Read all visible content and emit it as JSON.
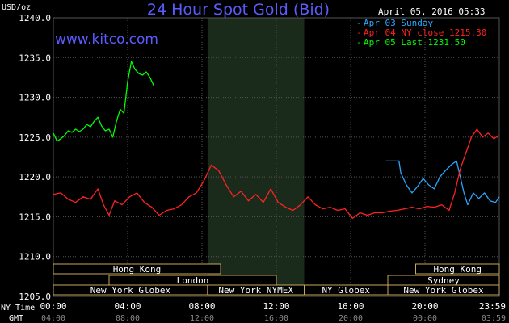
{
  "title": "24 Hour Spot Gold (Bid)",
  "brand": "www.kitco.com",
  "unit_label": "USD/oz",
  "timestamp": "April 05, 2016 05:33",
  "timezone_labels": {
    "ny": "NY Time",
    "gmt": "GMT"
  },
  "colors": {
    "background": "#000000",
    "grid": "#555555",
    "highlight": "#1b2b1b",
    "title": "#5a5cff",
    "apr03": "#29a8ff",
    "apr04": "#ff2222",
    "apr05": "#00ff00",
    "session_border": "#c8a75a"
  },
  "legend": [
    {
      "label": "Apr 03 Sunday",
      "color": "#29a8ff"
    },
    {
      "label": "Apr 04 NY close 1215.30",
      "color": "#ff2222"
    },
    {
      "label": "Apr 05 Last 1231.50",
      "color": "#00ff00"
    }
  ],
  "sessions": {
    "row1": [
      {
        "label": "Hong Kong",
        "start": 0,
        "end": 9
      },
      {
        "label": "Hong Kong",
        "start": 19.5,
        "end": 24
      }
    ],
    "row2": [
      {
        "label": "London",
        "start": 3,
        "end": 12
      },
      {
        "label": "Sydney",
        "start": 18,
        "end": 24
      }
    ],
    "row3": [
      {
        "label": "New York Globex",
        "start": 0,
        "end": 8.3
      },
      {
        "label": "New York NYMEX",
        "start": 8.3,
        "end": 13.5
      },
      {
        "label": "NY Globex",
        "start": 13.5,
        "end": 18
      },
      {
        "label": "New York Globex",
        "start": 18,
        "end": 24
      }
    ]
  },
  "chart_data": {
    "type": "line",
    "title": "24 Hour Spot Gold (Bid)",
    "ylabel": "USD/oz",
    "ylim": [
      1205,
      1240
    ],
    "yticks": [
      1205,
      1210,
      1215,
      1220,
      1225,
      1230,
      1235,
      1240
    ],
    "ytick_labels": [
      "1205.0",
      "1210.0",
      "1215.0",
      "1220.0",
      "1225.0",
      "1230.0",
      "1235.0",
      "1240.0"
    ],
    "xlim": [
      0,
      24
    ],
    "xticks_ny": [
      "00:00",
      "04:00",
      "08:00",
      "12:00",
      "16:00",
      "20:00",
      "23:59"
    ],
    "xticks_gmt": [
      "04:00",
      "08:00",
      "12:00",
      "16:00",
      "20:00",
      "00:00",
      "03:59"
    ],
    "xtick_positions": [
      0,
      4,
      8,
      12,
      16,
      20,
      24
    ],
    "grid": true,
    "highlight_range": [
      8.3,
      13.5
    ],
    "legend_position": "top-right",
    "series": [
      {
        "name": "Apr 03 Sunday",
        "color": "#29a8ff",
        "x": [
          17.9,
          18.6,
          18.7,
          19.0,
          19.3,
          19.6,
          19.9,
          20.2,
          20.5,
          20.8,
          21.1,
          21.4,
          21.7,
          21.9,
          22.1,
          22.3,
          22.6,
          22.9,
          23.2,
          23.5,
          23.8,
          24.0
        ],
        "y": [
          1222.0,
          1222.0,
          1220.5,
          1219.0,
          1218.0,
          1218.8,
          1219.8,
          1219.0,
          1218.5,
          1220.0,
          1220.8,
          1221.5,
          1222.0,
          1220.0,
          1218.0,
          1216.5,
          1218.0,
          1217.3,
          1218.0,
          1217.0,
          1216.8,
          1217.5
        ]
      },
      {
        "name": "Apr 04 NY close 1215.30",
        "color": "#ff2222",
        "x": [
          0,
          0.4,
          0.8,
          1.2,
          1.6,
          2.0,
          2.4,
          2.7,
          3.0,
          3.3,
          3.7,
          4.1,
          4.5,
          4.9,
          5.3,
          5.7,
          6.1,
          6.5,
          6.9,
          7.3,
          7.7,
          8.1,
          8.5,
          8.9,
          9.3,
          9.7,
          10.1,
          10.5,
          10.9,
          11.3,
          11.7,
          12.1,
          12.5,
          12.9,
          13.3,
          13.7,
          14.1,
          14.5,
          14.9,
          15.3,
          15.7,
          16.1,
          16.5,
          16.9,
          17.3,
          17.7,
          18.1,
          18.5,
          18.9,
          19.3,
          19.7,
          20.1,
          20.5,
          20.9,
          21.3,
          21.6,
          21.9,
          22.2,
          22.5,
          22.8,
          23.1,
          23.4,
          23.7,
          24.0
        ],
        "y": [
          1217.8,
          1218.0,
          1217.2,
          1216.8,
          1217.5,
          1217.2,
          1218.5,
          1216.5,
          1215.2,
          1217.0,
          1216.5,
          1217.5,
          1218.0,
          1216.8,
          1216.2,
          1215.2,
          1215.8,
          1216.0,
          1216.5,
          1217.5,
          1218.0,
          1219.5,
          1221.5,
          1220.8,
          1219.0,
          1217.5,
          1218.2,
          1217.0,
          1217.8,
          1216.8,
          1218.5,
          1216.8,
          1216.2,
          1215.8,
          1216.5,
          1217.5,
          1216.5,
          1216.0,
          1216.2,
          1215.8,
          1216.0,
          1214.8,
          1215.5,
          1215.2,
          1215.5,
          1215.5,
          1215.7,
          1215.8,
          1216.0,
          1216.2,
          1216.0,
          1216.3,
          1216.2,
          1216.5,
          1215.8,
          1218.0,
          1221.0,
          1223.0,
          1225.0,
          1226.0,
          1225.0,
          1225.5,
          1224.8,
          1225.2
        ]
      },
      {
        "name": "Apr 05 Last 1231.50",
        "color": "#00ff00",
        "x": [
          0,
          0.2,
          0.4,
          0.6,
          0.8,
          1.0,
          1.2,
          1.4,
          1.6,
          1.8,
          2.0,
          2.2,
          2.4,
          2.6,
          2.8,
          3.0,
          3.2,
          3.4,
          3.6,
          3.8,
          4.0,
          4.2,
          4.4,
          4.6,
          4.8,
          5.0,
          5.2,
          5.4
        ],
        "y": [
          1225.5,
          1224.5,
          1224.8,
          1225.2,
          1225.8,
          1225.6,
          1226.0,
          1225.7,
          1226.0,
          1226.6,
          1226.3,
          1227.0,
          1227.5,
          1226.4,
          1225.8,
          1226.0,
          1225.0,
          1227.0,
          1228.5,
          1228.0,
          1232.0,
          1234.5,
          1233.5,
          1233.0,
          1232.8,
          1233.2,
          1232.5,
          1231.5
        ]
      }
    ]
  }
}
